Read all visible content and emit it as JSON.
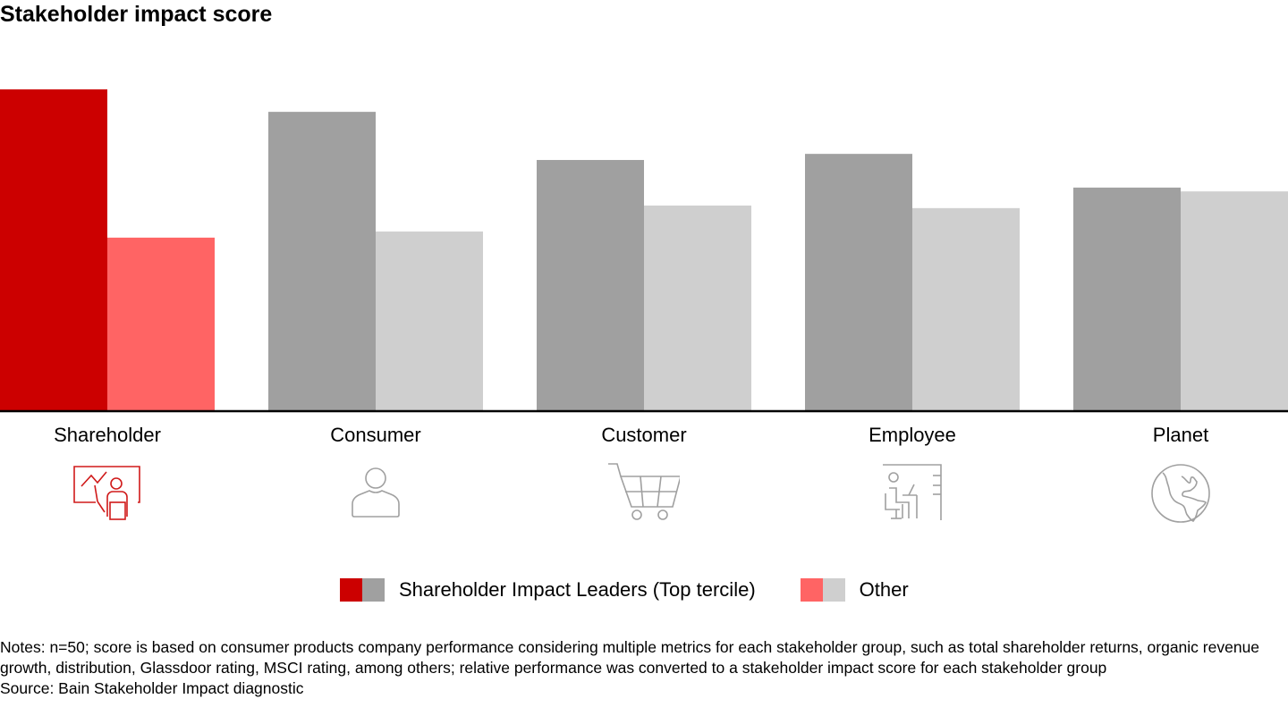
{
  "chart_data": {
    "type": "bar",
    "title": "Stakeholder impact score",
    "xlabel": "",
    "ylabel": "",
    "ylim": [
      0,
      100
    ],
    "grid": false,
    "categories": [
      "Shareholder",
      "Consumer",
      "Customer",
      "Employee",
      "Planet"
    ],
    "series": [
      {
        "name": "Shareholder Impact Leaders (Top tercile)",
        "values": [
          100,
          93.0,
          78.0,
          79.9,
          69.4
        ],
        "colors": [
          "#cc0000",
          "#a0a0a0",
          "#a0a0a0",
          "#a0a0a0",
          "#a0a0a0"
        ]
      },
      {
        "name": "Other",
        "values": [
          53.8,
          55.7,
          63.8,
          63.0,
          68.2
        ],
        "colors": [
          "#ff6464",
          "#cfcfcf",
          "#cfcfcf",
          "#cfcfcf",
          "#cfcfcf"
        ]
      }
    ],
    "legend_position": "bottom-center",
    "icons": [
      "presentation-chart-icon",
      "person-icon",
      "shopping-cart-icon",
      "desk-worker-icon",
      "globe-icon"
    ]
  },
  "legend": {
    "items": [
      {
        "label": "Shareholder Impact Leaders (Top tercile)",
        "colors": [
          "#cc0000",
          "#a0a0a0"
        ]
      },
      {
        "label": "Other",
        "colors": [
          "#ff6464",
          "#cfcfcf"
        ]
      }
    ]
  },
  "footer": {
    "notes": "Notes: n=50; score is based on consumer products company performance considering multiple metrics for each stakeholder group, such as total shareholder returns, organic revenue growth, distribution, Glassdoor rating, MSCI rating, among others; relative performance was converted to a stakeholder impact score for each stakeholder group",
    "source": "Source: Bain Stakeholder Impact diagnostic"
  }
}
